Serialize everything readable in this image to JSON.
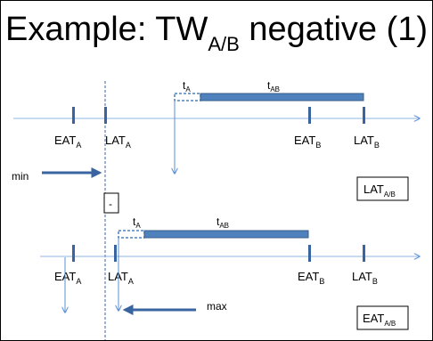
{
  "title": {
    "prefix": "Example: TW",
    "subscript": "A/B",
    "suffix": " negative (1)"
  },
  "scenario_top": {
    "ticks": [
      {
        "main": "EAT",
        "sub": "A"
      },
      {
        "main": "LAT",
        "sub": "A"
      },
      {
        "main": "EAT",
        "sub": "B"
      },
      {
        "main": "LAT",
        "sub": "B"
      }
    ],
    "bar_labels": [
      {
        "main": "t",
        "sub": "A"
      },
      {
        "main": "t",
        "sub": "AB"
      }
    ]
  },
  "min_arrow_label": "min",
  "diff_box_label": "-",
  "result_boxes": [
    {
      "main": "LAT",
      "sub": "A/B"
    },
    {
      "main": "EAT",
      "sub": "A/B"
    }
  ],
  "scenario_bottom": {
    "ticks": [
      {
        "main": "EAT",
        "sub": "A"
      },
      {
        "main": "LAT",
        "sub": "A"
      },
      {
        "main": "EAT",
        "sub": "B"
      },
      {
        "main": "LAT",
        "sub": "B"
      }
    ],
    "bar_labels": [
      {
        "main": "t",
        "sub": "A"
      },
      {
        "main": "t",
        "sub": "AB"
      }
    ]
  },
  "max_arrow_label": "max",
  "colors": {
    "bar_fill": "#4f81bd",
    "bar_stroke": "#385d8a",
    "timeline": "#8eb4e3",
    "tick": "#3a64a0",
    "arrow_thin": "#5b8fd6",
    "arrow_bold": "#3a64a0"
  }
}
